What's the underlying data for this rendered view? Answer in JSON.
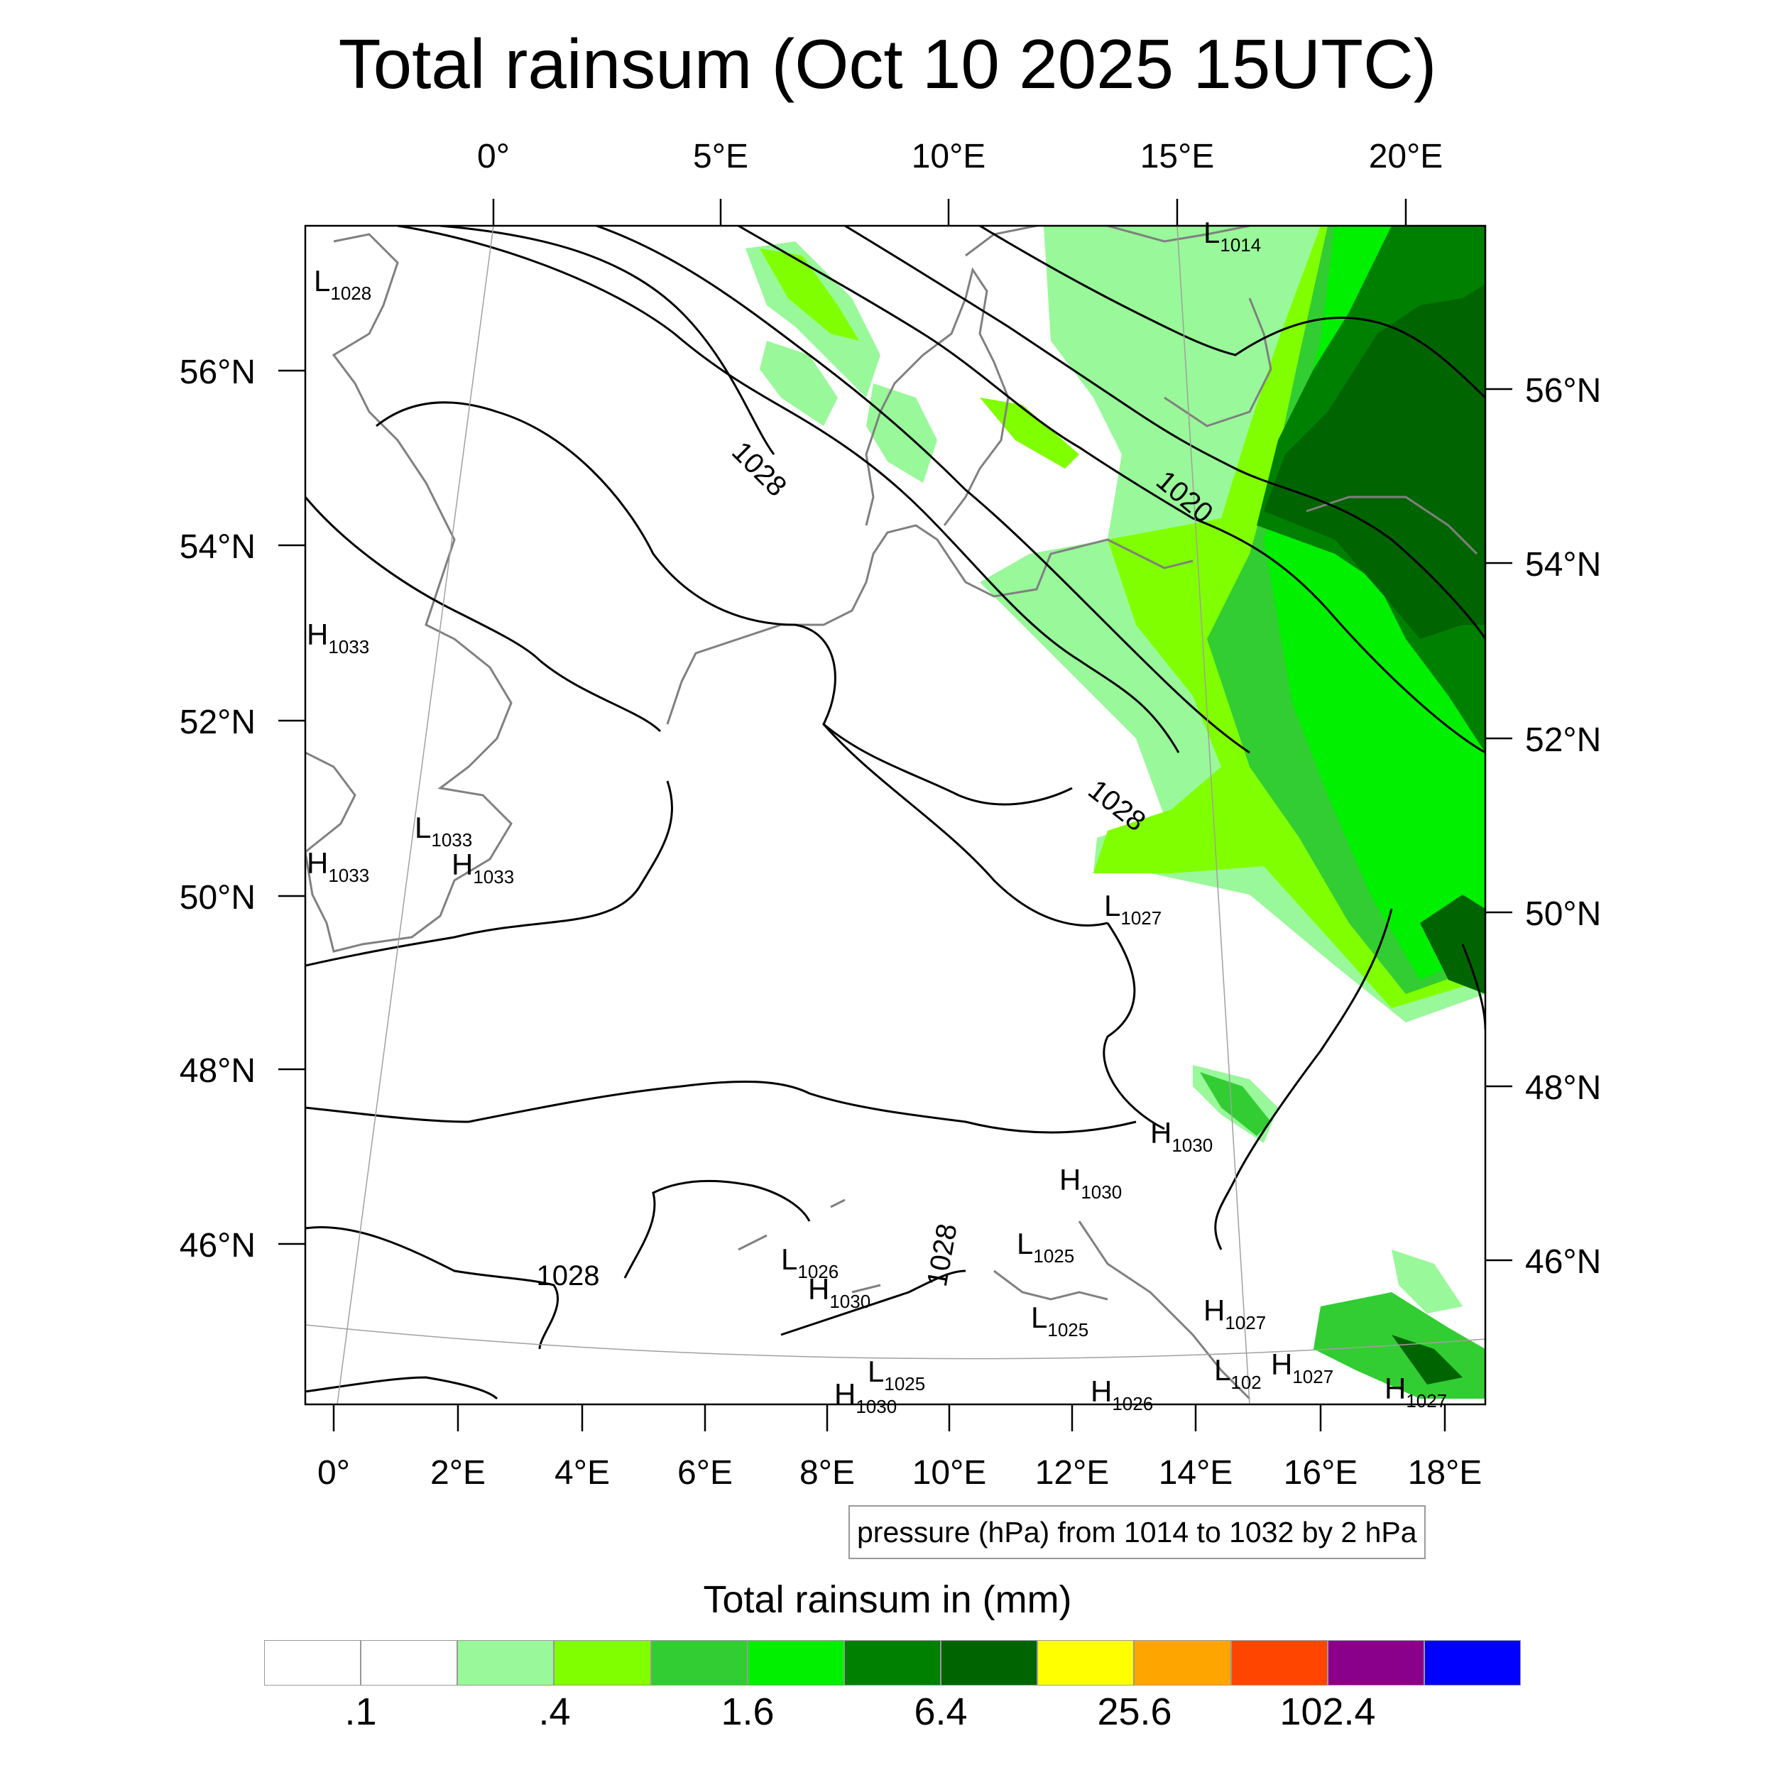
{
  "title": "Total rainsum (Oct 10 2025 15UTC)",
  "map": {
    "top_lon_labels": [
      "0°",
      "5°E",
      "10°E",
      "15°E",
      "20°E"
    ],
    "bottom_lon_labels": [
      "0°",
      "2°E",
      "4°E",
      "6°E",
      "8°E",
      "10°E",
      "12°E",
      "14°E",
      "16°E",
      "18°E"
    ],
    "left_lat_labels": [
      "56°N",
      "54°N",
      "52°N",
      "50°N",
      "48°N",
      "46°N"
    ],
    "right_lat_labels": [
      "56°N",
      "54°N",
      "52°N",
      "50°N",
      "48°N",
      "46°N"
    ],
    "contour_labels": [
      "1028",
      "1020",
      "1028",
      "1028",
      "1028"
    ],
    "pressure_centers": [
      {
        "type": "L",
        "value": "1028"
      },
      {
        "type": "L",
        "value": "1014"
      },
      {
        "type": "H",
        "value": "1033"
      },
      {
        "type": "L",
        "value": "1033"
      },
      {
        "type": "H",
        "value": "1033"
      },
      {
        "type": "H",
        "value": "1033"
      },
      {
        "type": "L",
        "value": "1027"
      },
      {
        "type": "H",
        "value": "1030"
      },
      {
        "type": "H",
        "value": "1030"
      },
      {
        "type": "L",
        "value": "1026"
      },
      {
        "type": "H",
        "value": "1030"
      },
      {
        "type": "L",
        "value": "1025"
      },
      {
        "type": "L",
        "value": "1025"
      },
      {
        "type": "H",
        "value": "1027"
      },
      {
        "type": "L",
        "value": "1025"
      },
      {
        "type": "L",
        "value": "102"
      },
      {
        "type": "H",
        "value": "1027"
      },
      {
        "type": "H",
        "value": "1026"
      },
      {
        "type": "H",
        "value": "1027"
      },
      {
        "type": "H",
        "value": "1030"
      }
    ],
    "colors": {
      "coast": "#808080",
      "isobar": "#000000",
      "grid": "#a0a0a0"
    }
  },
  "note": "pressure (hPa) from 1014 to 1032 by 2 hPa",
  "colorbar": {
    "title": "Total rainsum in (mm)",
    "colors": [
      "#ffffff",
      "#ffffff",
      "#99f899",
      "#80ff00",
      "#32cd32",
      "#00f000",
      "#008000",
      "#006400",
      "#ffff00",
      "#ffa500",
      "#ff4500",
      "#8b008b",
      "#0000ff"
    ],
    "labels": [
      ".1",
      ".4",
      "1.6",
      "6.4",
      "25.6",
      "102.4"
    ]
  }
}
